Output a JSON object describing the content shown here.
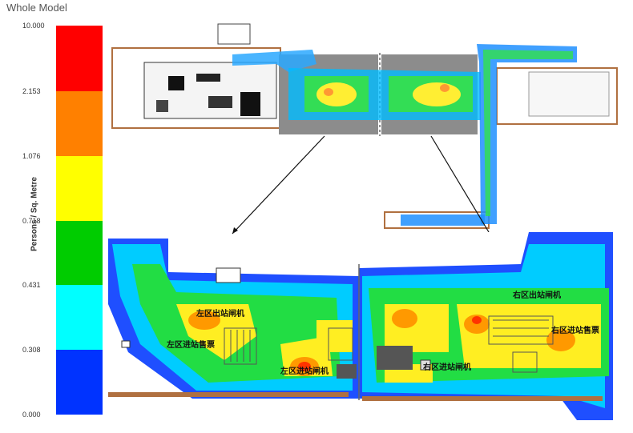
{
  "legend": {
    "title": "Whole Model",
    "axis_label": "Persons / Sq. Metre",
    "ticks": [
      "10.000",
      "2.153",
      "1.076",
      "0.718",
      "0.431",
      "0.308",
      "0.000"
    ],
    "colors": [
      "#ff0000",
      "#ff8000",
      "#ffff00",
      "#00cc00",
      "#00ffff",
      "#0033ff"
    ]
  },
  "labels": {
    "left_exit_gates": "左区出站闸机",
    "left_ticketing": "左区进站售票",
    "left_entry_gates": "左区进站闸机",
    "right_exit_gates": "右区出站闸机",
    "right_ticketing": "右区进站售票",
    "right_entry_gates": "右区进站闸机"
  }
}
